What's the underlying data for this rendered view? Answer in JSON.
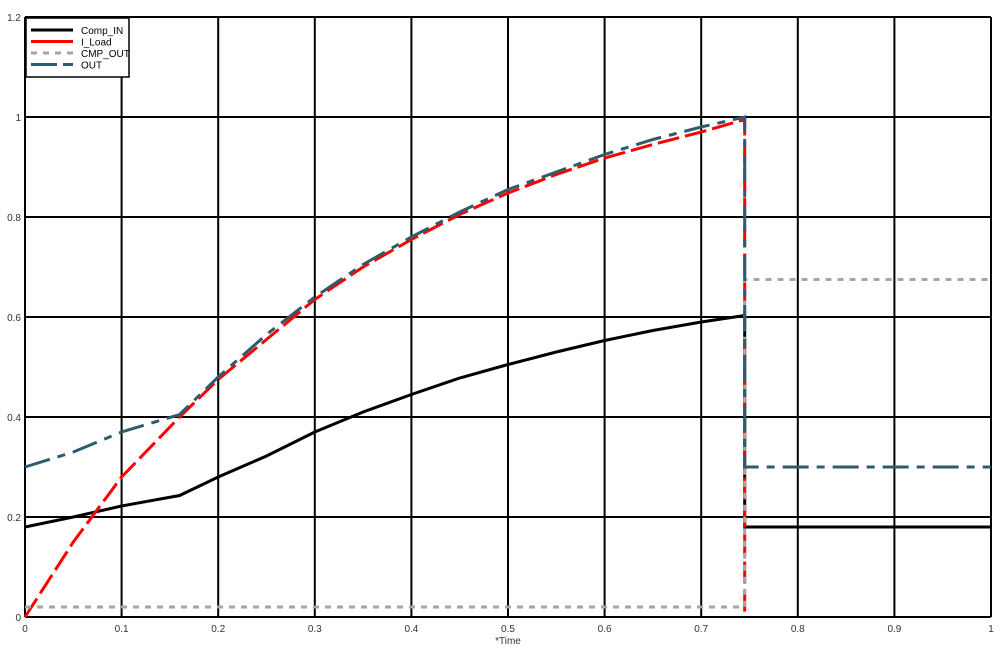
{
  "chart_data": {
    "type": "line",
    "title": "",
    "xlabel": "*Time",
    "ylabel": "",
    "xlim": [
      0,
      1
    ],
    "ylim": [
      0,
      1.2
    ],
    "xticks": [
      0,
      0.1,
      0.2,
      0.3,
      0.4,
      0.5,
      0.6,
      0.7,
      0.8,
      0.9,
      1
    ],
    "yticks": [
      0,
      0.2,
      0.4,
      0.6,
      0.8,
      1,
      1.2
    ],
    "grid": true,
    "legend_position": "top-left",
    "series": [
      {
        "name": "Comp_IN",
        "color": "#000000",
        "dash": "solid",
        "points": [
          [
            0,
            0.18
          ],
          [
            0.05,
            0.2
          ],
          [
            0.1,
            0.222
          ],
          [
            0.16,
            0.243
          ],
          [
            0.2,
            0.28
          ],
          [
            0.25,
            0.322
          ],
          [
            0.3,
            0.37
          ],
          [
            0.35,
            0.41
          ],
          [
            0.4,
            0.445
          ],
          [
            0.45,
            0.478
          ],
          [
            0.5,
            0.505
          ],
          [
            0.55,
            0.53
          ],
          [
            0.6,
            0.553
          ],
          [
            0.65,
            0.573
          ],
          [
            0.7,
            0.59
          ],
          [
            0.745,
            0.603
          ],
          [
            0.745,
            0.18
          ],
          [
            1,
            0.18
          ]
        ]
      },
      {
        "name": "I_Load",
        "color": "#ff0000",
        "dash": "long-dash",
        "points": [
          [
            0,
            0
          ],
          [
            0.05,
            0.15
          ],
          [
            0.1,
            0.28
          ],
          [
            0.16,
            0.4
          ],
          [
            0.2,
            0.475
          ],
          [
            0.25,
            0.555
          ],
          [
            0.3,
            0.635
          ],
          [
            0.35,
            0.7
          ],
          [
            0.4,
            0.755
          ],
          [
            0.45,
            0.805
          ],
          [
            0.5,
            0.848
          ],
          [
            0.55,
            0.885
          ],
          [
            0.6,
            0.918
          ],
          [
            0.65,
            0.945
          ],
          [
            0.7,
            0.97
          ],
          [
            0.745,
            0.995
          ],
          [
            0.745,
            0
          ]
        ]
      },
      {
        "name": "CMP_OUT",
        "color": "#a6a6a6",
        "dash": "dotted",
        "points": [
          [
            0,
            0.02
          ],
          [
            0.745,
            0.02
          ],
          [
            0.745,
            0.675
          ],
          [
            1,
            0.675
          ]
        ]
      },
      {
        "name": "OUT",
        "color": "#2f5b6e",
        "dash": "dash-dot",
        "points": [
          [
            0,
            0.3
          ],
          [
            0.05,
            0.33
          ],
          [
            0.1,
            0.37
          ],
          [
            0.16,
            0.405
          ],
          [
            0.2,
            0.48
          ],
          [
            0.25,
            0.565
          ],
          [
            0.3,
            0.64
          ],
          [
            0.35,
            0.705
          ],
          [
            0.4,
            0.76
          ],
          [
            0.45,
            0.81
          ],
          [
            0.5,
            0.855
          ],
          [
            0.55,
            0.89
          ],
          [
            0.6,
            0.925
          ],
          [
            0.65,
            0.955
          ],
          [
            0.7,
            0.98
          ],
          [
            0.745,
            1.0
          ],
          [
            0.745,
            0.3
          ],
          [
            1,
            0.3
          ]
        ]
      }
    ]
  }
}
